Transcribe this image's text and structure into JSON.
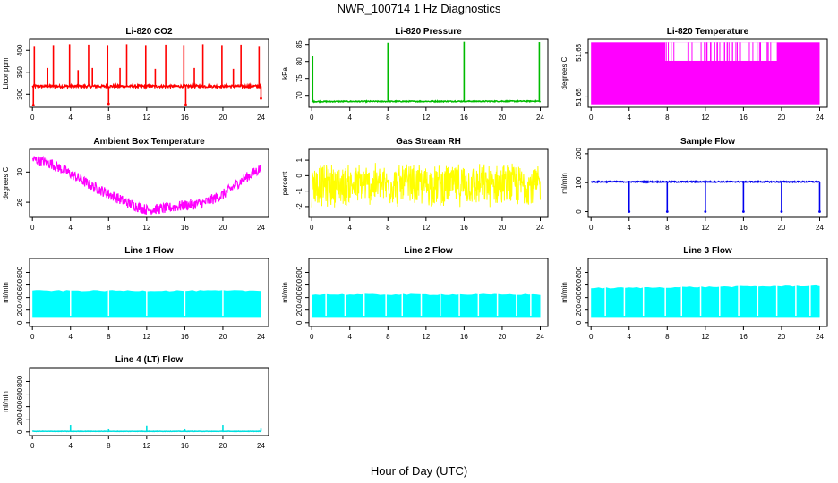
{
  "title": "NWR_100714  1 Hz Diagnostics",
  "xlabel": "Hour of Day (UTC)",
  "chart_data": [
    {
      "type": "line",
      "title": "Li-820 CO2",
      "ylabel": "Licor ppm",
      "color": "#ff0000",
      "x_ticks": [
        0,
        4,
        8,
        12,
        16,
        20,
        24
      ],
      "y_ticks": [
        300,
        350,
        400
      ],
      "xlim": [
        -0.3,
        24.8
      ],
      "ylim": [
        270,
        425
      ],
      "baseline": 318,
      "noise": 3,
      "spikes": [
        {
          "x": 0.2,
          "y": 410
        },
        {
          "x": 1.6,
          "y": 360
        },
        {
          "x": 2.2,
          "y": 412
        },
        {
          "x": 3.9,
          "y": 414
        },
        {
          "x": 4.8,
          "y": 355
        },
        {
          "x": 5.9,
          "y": 413
        },
        {
          "x": 6.3,
          "y": 360
        },
        {
          "x": 7.9,
          "y": 412
        },
        {
          "x": 9.2,
          "y": 360
        },
        {
          "x": 9.9,
          "y": 414
        },
        {
          "x": 11.9,
          "y": 412
        },
        {
          "x": 12.9,
          "y": 358
        },
        {
          "x": 14.0,
          "y": 413
        },
        {
          "x": 15.9,
          "y": 412
        },
        {
          "x": 17.0,
          "y": 360
        },
        {
          "x": 17.9,
          "y": 414
        },
        {
          "x": 19.9,
          "y": 412
        },
        {
          "x": 21.1,
          "y": 358
        },
        {
          "x": 21.9,
          "y": 413
        },
        {
          "x": 23.8,
          "y": 410
        }
      ],
      "dips": [
        {
          "x": 0.1,
          "y": 275
        },
        {
          "x": 8.0,
          "y": 278
        },
        {
          "x": 16.1,
          "y": 276
        },
        {
          "x": 24.0,
          "y": 290
        }
      ]
    },
    {
      "type": "line",
      "title": "Li-820 Pressure",
      "ylabel": "kPa",
      "color": "#00bb00",
      "x_ticks": [
        0,
        4,
        8,
        12,
        16,
        20,
        24
      ],
      "y_ticks": [
        70,
        75,
        80,
        85
      ],
      "xlim": [
        -0.3,
        24.8
      ],
      "ylim": [
        66.5,
        86.5
      ],
      "baseline_start": 68.2,
      "baseline_end": 68.3,
      "noise": 0.15,
      "spikes": [
        {
          "x": 0.1,
          "y": 81.5
        },
        {
          "x": 8.0,
          "y": 85.5
        },
        {
          "x": 16.0,
          "y": 85.8
        },
        {
          "x": 23.9,
          "y": 85.7
        }
      ]
    },
    {
      "type": "band",
      "title": "Li-820 Temperature",
      "ylabel": "degrees C",
      "color": "#ff00ff",
      "x_ticks": [
        0,
        4,
        8,
        12,
        16,
        20,
        24
      ],
      "y_ticks": [
        51.65,
        51.68
      ],
      "xlim": [
        -0.3,
        24.8
      ],
      "ylim": [
        51.643,
        51.689
      ],
      "low": 51.645,
      "high": 51.687,
      "mid": 51.6745,
      "gap_start": 7.8,
      "gap_end": 19.5
    },
    {
      "type": "band",
      "title": "Ambient Box Temperature",
      "ylabel": "degrees C",
      "color": "#ff00ff",
      "x_ticks": [
        0,
        4,
        8,
        12,
        16,
        20,
        24
      ],
      "y_ticks": [
        26,
        30
      ],
      "xlim": [
        -0.3,
        24.8
      ],
      "ylim": [
        24.0,
        33.0
      ],
      "curve_x": [
        0,
        2,
        4,
        6,
        8,
        10,
        12,
        14,
        16,
        18,
        20,
        22,
        24
      ],
      "curve_y": [
        31.7,
        31.1,
        29.8,
        28.3,
        27.1,
        25.9,
        25.0,
        25.2,
        25.6,
        25.9,
        27.0,
        28.9,
        30.5
      ],
      "width": 1.4
    },
    {
      "type": "band",
      "title": "Gas Stream RH",
      "ylabel": "percent",
      "color": "#ffff00",
      "x_ticks": [
        0,
        4,
        8,
        12,
        16,
        20,
        24
      ],
      "y_ticks": [
        -2,
        -1,
        0,
        1
      ],
      "xlim": [
        -0.3,
        24.8
      ],
      "ylim": [
        -2.7,
        1.7
      ],
      "center": -0.6,
      "spread": 1.5
    },
    {
      "type": "line",
      "title": "Sample Flow",
      "ylabel": "ml/min",
      "color": "#0000ee",
      "x_ticks": [
        0,
        4,
        8,
        12,
        16,
        20,
        24
      ],
      "y_ticks": [
        0,
        100,
        200
      ],
      "xlim": [
        -0.3,
        24.8
      ],
      "ylim": [
        -20,
        215
      ],
      "baseline": 103,
      "noise": 2,
      "dips": [
        {
          "x": 4.0,
          "y": 0
        },
        {
          "x": 8.0,
          "y": 0
        },
        {
          "x": 12.0,
          "y": 0
        },
        {
          "x": 16.0,
          "y": 0
        },
        {
          "x": 20.0,
          "y": 0
        },
        {
          "x": 24.0,
          "y": 0
        }
      ]
    },
    {
      "type": "band",
      "title": "Line 1 Flow",
      "ylabel": "ml/min",
      "color": "#00ffff",
      "x_ticks": [
        0,
        4,
        8,
        12,
        16,
        20,
        24
      ],
      "y_ticks": [
        0,
        200,
        400,
        600,
        800
      ],
      "xlim": [
        -0.3,
        24.8
      ],
      "ylim": [
        -60,
        1020
      ],
      "low": 90,
      "high": 510,
      "breaks": [
        4,
        8,
        12,
        16,
        20
      ]
    },
    {
      "type": "band",
      "title": "Line 2 Flow",
      "ylabel": "ml/min",
      "color": "#00ffff",
      "x_ticks": [
        0,
        4,
        8,
        12,
        16,
        20,
        24
      ],
      "y_ticks": [
        0,
        200,
        400,
        600,
        800
      ],
      "xlim": [
        -0.3,
        24.8
      ],
      "ylim": [
        -60,
        1020
      ],
      "low": 90,
      "high": 450,
      "breaks": [
        1.5,
        3.5,
        5.5,
        7.8,
        9.5,
        11.5,
        13.5,
        15.5,
        17.5,
        19.5,
        21.5,
        23.0
      ]
    },
    {
      "type": "band",
      "title": "Line 3 Flow",
      "ylabel": "ml/min",
      "color": "#00ffff",
      "x_ticks": [
        0,
        4,
        8,
        12,
        16,
        20,
        24
      ],
      "y_ticks": [
        0,
        200,
        400,
        600,
        800
      ],
      "xlim": [
        -0.3,
        24.8
      ],
      "ylim": [
        -60,
        1020
      ],
      "low": 90,
      "high": 550,
      "high_end": 590,
      "breaks": [
        1.5,
        3.5,
        5.5,
        7.8,
        9.5,
        11.5,
        13.5,
        15.5,
        17.5,
        19.5,
        21.5,
        23.0
      ]
    },
    {
      "type": "line",
      "title": "Line 4 (LT) Flow",
      "ylabel": "ml/min",
      "color": "#00e0e0",
      "x_ticks": [
        0,
        4,
        8,
        12,
        16,
        20,
        24
      ],
      "y_ticks": [
        0,
        200,
        400,
        600,
        800
      ],
      "xlim": [
        -0.3,
        24.8
      ],
      "ylim": [
        -60,
        1020
      ],
      "baseline": 8,
      "noise": 3,
      "spikes": [
        {
          "x": 4.0,
          "y": 110
        },
        {
          "x": 8.0,
          "y": 40
        },
        {
          "x": 12.0,
          "y": 100
        },
        {
          "x": 16.0,
          "y": 40
        },
        {
          "x": 20.0,
          "y": 110
        },
        {
          "x": 24.0,
          "y": 50
        }
      ]
    }
  ]
}
